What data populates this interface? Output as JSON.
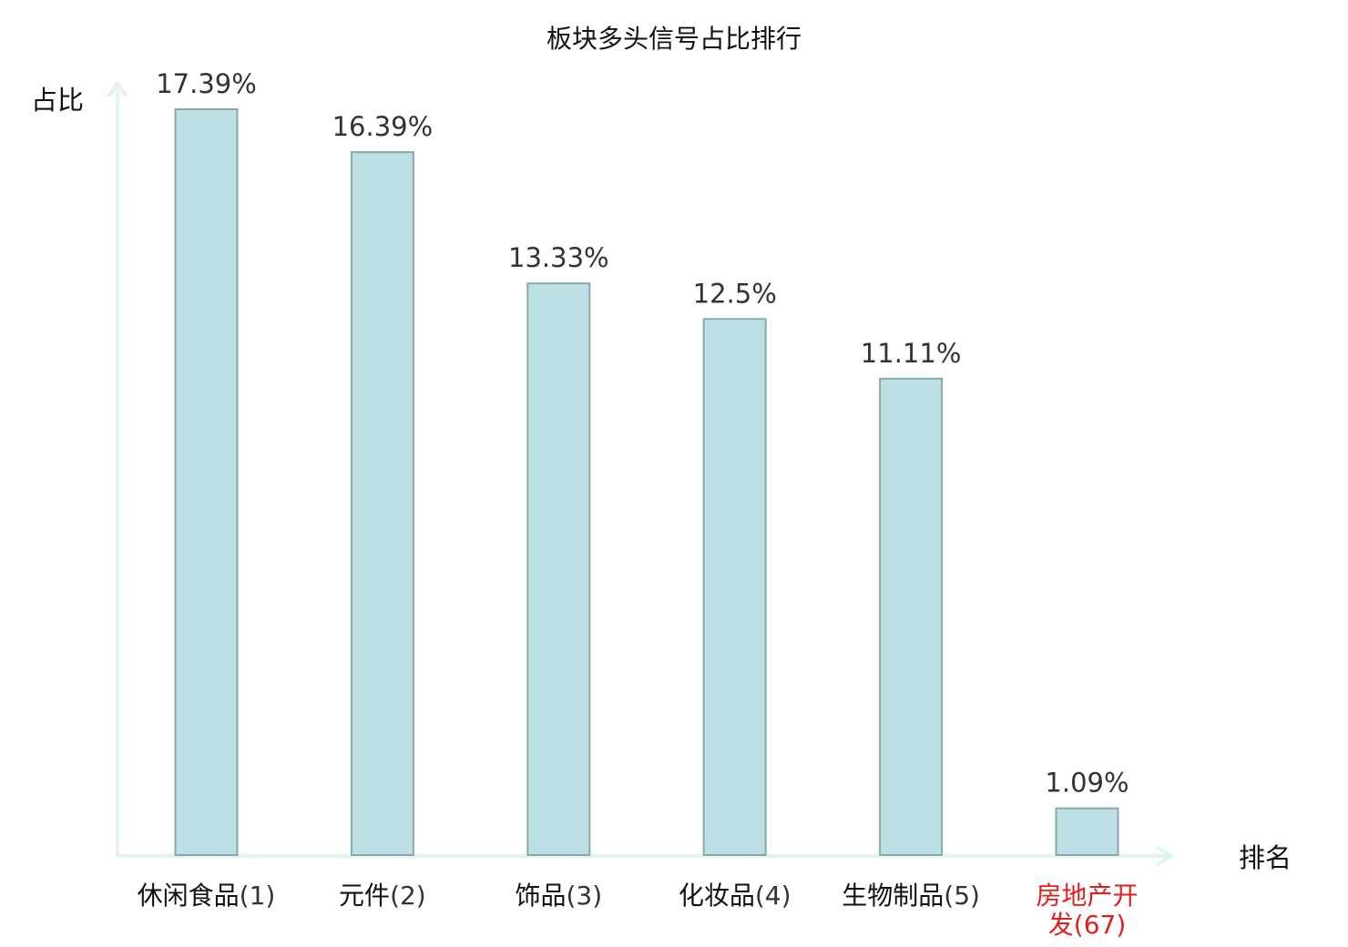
{
  "chart_data": {
    "type": "bar",
    "title": "板块多头信号占比排行",
    "ylabel": "占比",
    "xlabel": "排名",
    "ylim": [
      0,
      18
    ],
    "grid": false,
    "legend": "none",
    "categories": [
      {
        "name": "休闲食品",
        "rank": "(1)"
      },
      {
        "name": "元件",
        "rank": "(2)"
      },
      {
        "name": "饰品",
        "rank": "(3)"
      },
      {
        "name": "化妆品",
        "rank": "(4)"
      },
      {
        "name": "生物制品",
        "rank": "(5)"
      },
      {
        "name": "房地产开发",
        "rank": "(67)",
        "highlight": true
      }
    ],
    "values": [
      17.39,
      16.39,
      13.33,
      12.5,
      11.11,
      1.09
    ],
    "value_labels": [
      "17.39%",
      "16.39%",
      "13.33%",
      "12.5%",
      "11.11%",
      "1.09%"
    ],
    "colors": {
      "bar_fill": "#bce0e3",
      "bar_stroke": "#88a8ac",
      "axis": "#e2f3f1",
      "highlight_text": "#e02020",
      "value_text": "#333333"
    }
  }
}
